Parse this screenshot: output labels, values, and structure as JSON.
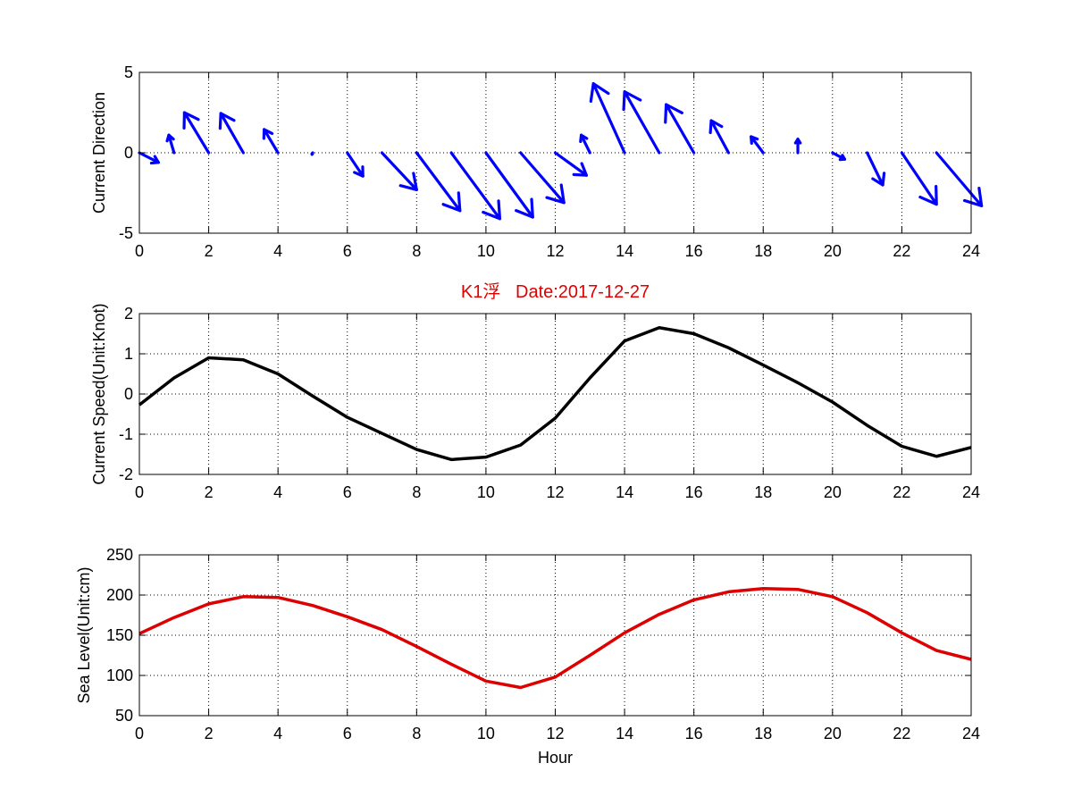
{
  "chart_data": [
    {
      "type": "quiver",
      "ylabel": "Current Direction",
      "xlim": [
        0,
        24
      ],
      "ylim": [
        -5,
        5
      ],
      "xticks": [
        "0",
        "2",
        "4",
        "6",
        "8",
        "10",
        "12",
        "14",
        "16",
        "18",
        "20",
        "22",
        "24"
      ],
      "yticks": [
        "-5",
        "0",
        "5"
      ],
      "grid": true,
      "color": "#0000ff",
      "vectors": [
        {
          "x": 0,
          "u": 0.55,
          "v": -0.6
        },
        {
          "x": 1,
          "u": -0.15,
          "v": 1.1
        },
        {
          "x": 2,
          "u": -0.7,
          "v": 2.5
        },
        {
          "x": 3,
          "u": -0.65,
          "v": 2.45
        },
        {
          "x": 4,
          "u": -0.4,
          "v": 1.45
        },
        {
          "x": 5,
          "u": -0.02,
          "v": -0.1
        },
        {
          "x": 6,
          "u": 0.45,
          "v": -1.45
        },
        {
          "x": 7,
          "u": 1.0,
          "v": -2.3
        },
        {
          "x": 8,
          "u": 1.25,
          "v": -3.6
        },
        {
          "x": 9,
          "u": 1.4,
          "v": -4.1
        },
        {
          "x": 10,
          "u": 1.35,
          "v": -4.0
        },
        {
          "x": 11,
          "u": 1.25,
          "v": -3.1
        },
        {
          "x": 12,
          "u": 0.9,
          "v": -1.4
        },
        {
          "x": 13,
          "u": -0.25,
          "v": 1.1
        },
        {
          "x": 14,
          "u": -0.9,
          "v": 4.3
        },
        {
          "x": 15,
          "u": -1.0,
          "v": 3.8
        },
        {
          "x": 16,
          "u": -0.8,
          "v": 3.0
        },
        {
          "x": 17,
          "u": -0.5,
          "v": 2.0
        },
        {
          "x": 18,
          "u": -0.35,
          "v": 1.0
        },
        {
          "x": 19,
          "u": 0.0,
          "v": 0.85
        },
        {
          "x": 20,
          "u": 0.35,
          "v": -0.4
        },
        {
          "x": 21,
          "u": 0.45,
          "v": -2.0
        },
        {
          "x": 22,
          "u": 1.0,
          "v": -3.2
        },
        {
          "x": 23,
          "u": 1.3,
          "v": -3.3
        }
      ]
    },
    {
      "type": "line",
      "title": "K1浮   Date:2017-12-27",
      "ylabel": "Current Speed(Unit:Knot)",
      "xlim": [
        0,
        24
      ],
      "ylim": [
        -2,
        2
      ],
      "xticks": [
        "0",
        "2",
        "4",
        "6",
        "8",
        "10",
        "12",
        "14",
        "16",
        "18",
        "20",
        "22",
        "24"
      ],
      "yticks": [
        "-2",
        "-1",
        "0",
        "1",
        "2"
      ],
      "grid": true,
      "color": "#000000",
      "x": [
        0,
        1,
        2,
        3,
        4,
        5,
        6,
        7,
        8,
        9,
        10,
        11,
        12,
        13,
        14,
        15,
        16,
        17,
        18,
        19,
        20,
        21,
        22,
        23,
        24
      ],
      "y": [
        -0.27,
        0.4,
        0.9,
        0.85,
        0.5,
        -0.05,
        -0.58,
        -0.98,
        -1.38,
        -1.63,
        -1.57,
        -1.27,
        -0.6,
        0.4,
        1.32,
        1.65,
        1.5,
        1.15,
        0.72,
        0.28,
        -0.2,
        -0.78,
        -1.3,
        -1.55,
        -1.33
      ]
    },
    {
      "type": "line",
      "ylabel": "Sea Level(Unit:cm)",
      "xlabel": "Hour",
      "xlim": [
        0,
        24
      ],
      "ylim": [
        50,
        250
      ],
      "xticks": [
        "0",
        "2",
        "4",
        "6",
        "8",
        "10",
        "12",
        "14",
        "16",
        "18",
        "20",
        "22",
        "24"
      ],
      "yticks": [
        "50",
        "100",
        "150",
        "200",
        "250"
      ],
      "grid": true,
      "color": "#dd0000",
      "x": [
        0,
        1,
        2,
        3,
        4,
        5,
        6,
        7,
        8,
        9,
        10,
        11,
        12,
        13,
        14,
        15,
        16,
        17,
        18,
        19,
        20,
        21,
        22,
        23,
        24
      ],
      "y": [
        152,
        172,
        189,
        198,
        197,
        187,
        173,
        157,
        136,
        114,
        93,
        85,
        98,
        125,
        153,
        176,
        194,
        204,
        208,
        207,
        198,
        178,
        153,
        131,
        120
      ]
    }
  ]
}
